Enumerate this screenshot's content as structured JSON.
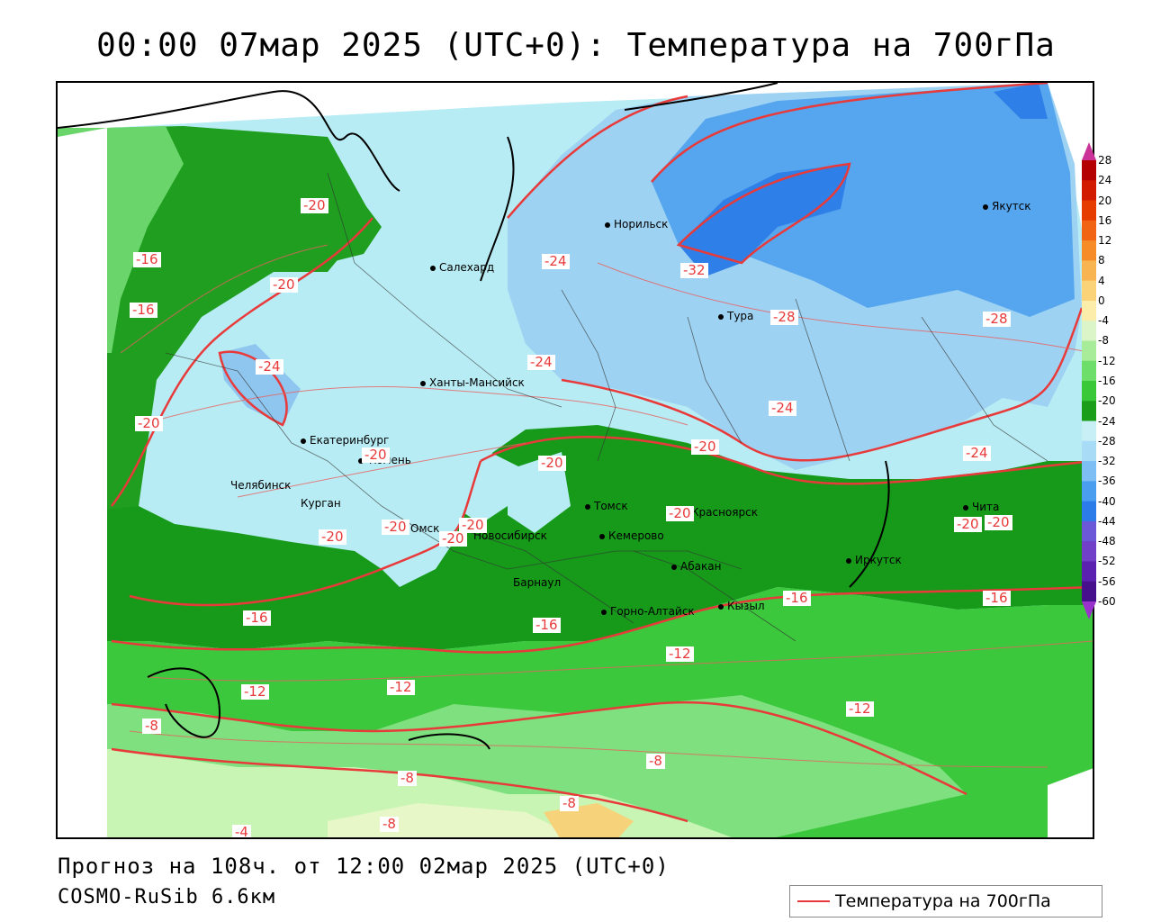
{
  "title": "00:00 07мар 2025 (UTC+0): Температура на 700гПа",
  "footer": {
    "forecast": "Прогноз на 108ч. от 12:00 02мар 2025 (UTC+0)",
    "model": "COSMO-RuSib 6.6км"
  },
  "legend": {
    "label": "Температура на 700гПа",
    "color": "#e83a3a"
  },
  "colorbar": {
    "ticks": [
      "28",
      "24",
      "20",
      "16",
      "12",
      "8",
      "4",
      "0",
      "-4",
      "-8",
      "-12",
      "-16",
      "-20",
      "-24",
      "-28",
      "-32",
      "-36",
      "-40",
      "-44",
      "-48",
      "-52",
      "-56",
      "-60"
    ],
    "colors": [
      "#c8167a",
      "#b40000",
      "#d21a00",
      "#e63c00",
      "#f06414",
      "#f58c28",
      "#f8b450",
      "#fad278",
      "#fcedaa",
      "#dcf5c8",
      "#a8ec9a",
      "#6ede6a",
      "#38c838",
      "#1a9e1a",
      "#c8eef6",
      "#a8dcf6",
      "#7dbef4",
      "#4a9ef0",
      "#2b7ce8",
      "#6a58d8",
      "#7040c8",
      "#5a20b0",
      "#46108c",
      "#32006a"
    ],
    "top_arrow_color": "#cc3399",
    "bottom_arrow_color": "#9933cc"
  },
  "cities": [
    {
      "name": "Норильск"
    },
    {
      "name": "Якутск"
    },
    {
      "name": "Салехард"
    },
    {
      "name": "Тура"
    },
    {
      "name": "Ханты-Мансийск"
    },
    {
      "name": "Екатеринбург"
    },
    {
      "name": "Тюмень"
    },
    {
      "name": "Челябинск"
    },
    {
      "name": "Курган"
    },
    {
      "name": "Омск"
    },
    {
      "name": "Новосибирск"
    },
    {
      "name": "Томск"
    },
    {
      "name": "Кемерово"
    },
    {
      "name": "Красноярск"
    },
    {
      "name": "Барнаул"
    },
    {
      "name": "Абакан"
    },
    {
      "name": "Горно-Алтайск"
    },
    {
      "name": "Кызыл"
    },
    {
      "name": "Иркутск"
    },
    {
      "name": "Чита"
    }
  ],
  "contour_labels": [
    "-20",
    "-16",
    "-16",
    "-20",
    "-20",
    "-24",
    "-24",
    "-24",
    "-32",
    "-28",
    "-28",
    "-24",
    "-20",
    "-24",
    "-20",
    "-20",
    "-20",
    "-20",
    "-20",
    "-20",
    "-20",
    "-20",
    "-20",
    "-16",
    "-16",
    "-16",
    "-16",
    "-12",
    "-12",
    "-12",
    "-12",
    "-8",
    "-8",
    "-8",
    "-8",
    "-8",
    "-4"
  ]
}
